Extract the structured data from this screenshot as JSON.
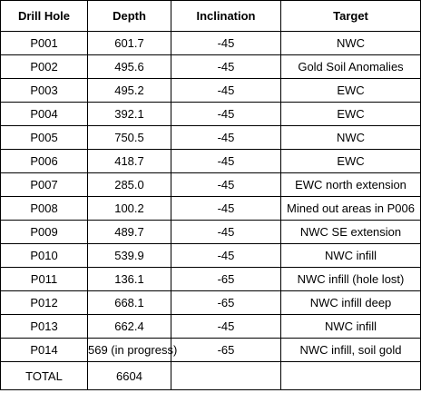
{
  "table": {
    "headers": [
      "Drill Hole",
      "Depth",
      "Inclination",
      "Target"
    ],
    "rows": [
      {
        "hole": "P001",
        "depth": "601.7",
        "inclination": "-45",
        "target": "NWC"
      },
      {
        "hole": "P002",
        "depth": "495.6",
        "inclination": "-45",
        "target": "Gold Soil Anomalies"
      },
      {
        "hole": "P003",
        "depth": "495.2",
        "inclination": "-45",
        "target": "EWC"
      },
      {
        "hole": "P004",
        "depth": "392.1",
        "inclination": "-45",
        "target": "EWC"
      },
      {
        "hole": "P005",
        "depth": "750.5",
        "inclination": "-45",
        "target": "NWC"
      },
      {
        "hole": "P006",
        "depth": "418.7",
        "inclination": "-45",
        "target": "EWC"
      },
      {
        "hole": "P007",
        "depth": "285.0",
        "inclination": "-45",
        "target": "EWC north extension"
      },
      {
        "hole": "P008",
        "depth": "100.2",
        "inclination": "-45",
        "target": "Mined out areas in P006"
      },
      {
        "hole": "P009",
        "depth": "489.7",
        "inclination": "-45",
        "target": "NWC SE extension"
      },
      {
        "hole": "P010",
        "depth": "539.9",
        "inclination": "-45",
        "target": "NWC infill"
      },
      {
        "hole": "P011",
        "depth": "136.1",
        "inclination": "-65",
        "target": "NWC infill (hole lost)"
      },
      {
        "hole": "P012",
        "depth": "668.1",
        "inclination": "-65",
        "target": "NWC infill deep"
      },
      {
        "hole": "P013",
        "depth": "662.4",
        "inclination": "-45",
        "target": "NWC infill"
      },
      {
        "hole": "P014",
        "depth": "569 (in progress)",
        "inclination": "-65",
        "target": "NWC infill, soil gold"
      }
    ],
    "total": {
      "label": "TOTAL",
      "depth": "6604",
      "inclination": "",
      "target": ""
    }
  }
}
